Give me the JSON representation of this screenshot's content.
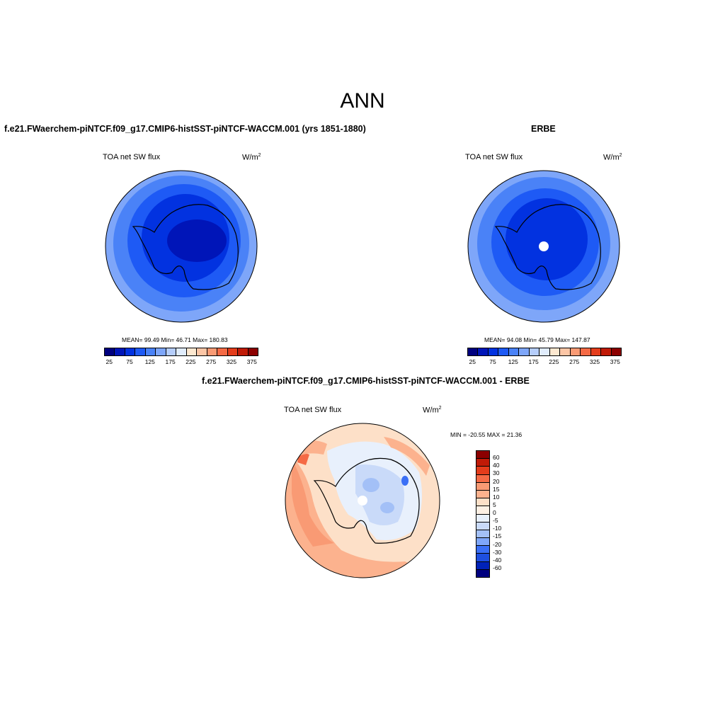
{
  "main_title": "ANN",
  "panels": [
    {
      "title": "f.e21.FWaerchem-piNTCF.f09_g17.CMIP6-histSST-piNTCF-WACCM.001 (yrs 1851-1880)",
      "variable": "TOA net SW flux",
      "units_base": "W/m",
      "units_exp": "2",
      "stats": "MEAN=  99.49  Min=  46.71  Max= 180.83"
    },
    {
      "title": "ERBE",
      "variable": "TOA net SW flux",
      "units_base": "W/m",
      "units_exp": "2",
      "stats": "MEAN=  94.08  Min=  45.79  Max= 147.87"
    },
    {
      "title": "f.e21.FWaerchem-piNTCF.f09_g17.CMIP6-histSST-piNTCF-WACCM.001 - ERBE",
      "variable": "TOA net SW flux",
      "units_base": "W/m",
      "units_exp": "2",
      "stats": "MIN = -20.55 MAX =  21.36"
    }
  ],
  "colorbar_abs": {
    "labels": [
      "25",
      "75",
      "125",
      "175",
      "225",
      "275",
      "325",
      "375"
    ],
    "colors": [
      "#00007f",
      "#0015b8",
      "#0232e0",
      "#1e5af5",
      "#4a82f7",
      "#7ea6f9",
      "#b5cdfb",
      "#e0ecfc",
      "#fde8d0",
      "#fcc6a6",
      "#f99a74",
      "#f56a45",
      "#e43c1b",
      "#c01a07",
      "#8c0000"
    ]
  },
  "colorbar_diff": {
    "labels": [
      "60",
      "40",
      "30",
      "20",
      "15",
      "10",
      "5",
      "0",
      "-5",
      "-10",
      "-15",
      "-20",
      "-30",
      "-40",
      "-60"
    ],
    "colors": [
      "#8c0000",
      "#c01a07",
      "#e43c1b",
      "#f56a45",
      "#f99a74",
      "#fcb28e",
      "#fde0c8",
      "#fdf0e4",
      "#e8f0fc",
      "#c9daf9",
      "#a3c0f7",
      "#7ea6f9",
      "#3a6ff6",
      "#1e4fe0",
      "#0022b8",
      "#00007f"
    ]
  }
}
